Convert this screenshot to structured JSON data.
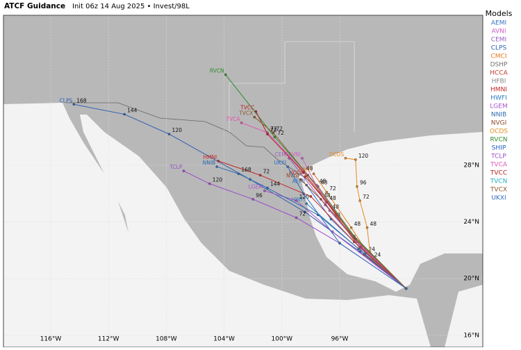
{
  "header": {
    "title": "ATCF Guidance",
    "subtitle": "Init 06z 14 Aug 2025 • Invest/98L"
  },
  "legend_title": "Models",
  "lon_ticks": [
    {
      "value": -116,
      "label": "116°W"
    },
    {
      "value": -112,
      "label": "112°W"
    },
    {
      "value": -108,
      "label": "108°W"
    },
    {
      "value": -104,
      "label": "104°W"
    },
    {
      "value": -100,
      "label": "100°W"
    },
    {
      "value": -96,
      "label": "96°W"
    }
  ],
  "lat_ticks": [
    {
      "value": 28,
      "label": "28°N"
    },
    {
      "value": 24,
      "label": "24°N"
    },
    {
      "value": 20,
      "label": "20°N"
    },
    {
      "value": 16,
      "label": "16°N"
    }
  ],
  "models": [
    {
      "name": "AEMI",
      "color": "#3a6fc4",
      "track": [
        [
          -91.4,
          19.3
        ],
        [
          -94.2,
          21.8,
          "24"
        ],
        [
          -96.6,
          24.2,
          "48"
        ],
        [
          -98.3,
          26.6
        ]
      ]
    },
    {
      "name": "AVNI",
      "color": "#d060c8",
      "track": [
        [
          -91.4,
          19.3
        ],
        [
          -94.3,
          22
        ],
        [
          -96.7,
          24.8,
          "48"
        ],
        [
          -98.6,
          28.5
        ]
      ]
    },
    {
      "name": "CEMI",
      "color": "#9b5fc0",
      "track": [
        [
          -91.4,
          19.3
        ],
        [
          -94.5,
          22.2
        ],
        [
          -97,
          25.2
        ],
        [
          -99.5,
          28.5
        ]
      ]
    },
    {
      "name": "CLPS",
      "color": "#2f5fb3",
      "track": [
        [
          -91.4,
          19.3
        ],
        [
          -94.6,
          21.9
        ],
        [
          -98.4,
          24.7
        ],
        [
          -102.2,
          27
        ],
        [
          -107.8,
          30.2,
          "120"
        ],
        [
          -110.9,
          31.6,
          "144"
        ],
        [
          -114.4,
          32.3,
          "168"
        ]
      ]
    },
    {
      "name": "CMCI",
      "color": "#e07b1a",
      "track": [
        [
          -91.4,
          19.3
        ],
        [
          -93.8,
          21.4,
          "24"
        ],
        [
          -95.2,
          23.6,
          "48"
        ],
        [
          -96.9,
          26.1,
          "72"
        ],
        [
          -97.8,
          27.4
        ]
      ]
    },
    {
      "name": "DSHP",
      "color": "#707070"
    },
    {
      "name": "HCCA",
      "color": "#c0392b",
      "track": [
        [
          -91.4,
          19.3
        ],
        [
          -94.3,
          21.7
        ],
        [
          -96.9,
          25.4,
          "48"
        ],
        [
          -98.4,
          27.2
        ]
      ]
    },
    {
      "name": "HFBI",
      "color": "#888888"
    },
    {
      "name": "HMNI",
      "color": "#c62828",
      "track": [
        [
          -91.4,
          19.3
        ],
        [
          -95,
          22.6
        ],
        [
          -98,
          25.8
        ],
        [
          -101.5,
          27.3,
          "72"
        ],
        [
          -104.4,
          28.3
        ]
      ]
    },
    {
      "name": "HWFI",
      "color": "#2a7fc0",
      "track": [
        [
          -91.4,
          19.3
        ],
        [
          -94.7,
          22.1
        ],
        [
          -98.3,
          25.3
        ]
      ]
    },
    {
      "name": "LGEM",
      "color": "#a855c9",
      "track": [
        [
          -91.4,
          19.3
        ],
        [
          -96.5,
          23.3
        ],
        [
          -99,
          25.5,
          "120"
        ],
        [
          -101.2,
          26.2
        ]
      ]
    },
    {
      "name": "NNIB",
      "color": "#2d6bb0",
      "track": [
        [
          -91.4,
          19.3
        ],
        [
          -97.5,
          24.5
        ],
        [
          -101,
          26.4,
          "144"
        ],
        [
          -103,
          27.4,
          "168"
        ],
        [
          -104.5,
          27.9
        ]
      ]
    },
    {
      "name": "NVGI",
      "color": "#8b4a2b",
      "track": [
        [
          -91.4,
          19.3
        ],
        [
          -94.5,
          22.3
        ],
        [
          -97.3,
          25.6,
          "48"
        ],
        [
          -98.7,
          27
        ]
      ]
    },
    {
      "name": "OCDS",
      "color": "#e58a1f",
      "track": [
        [
          -91.4,
          19.3
        ],
        [
          -93.9,
          21.8
        ],
        [
          -94.1,
          23.6,
          "48"
        ],
        [
          -94.6,
          25.5,
          "72"
        ],
        [
          -94.8,
          26.5,
          "96"
        ],
        [
          -94.9,
          28.4,
          "120"
        ],
        [
          -95.6,
          28.5
        ]
      ]
    },
    {
      "name": "RVCN",
      "color": "#2e8b2e",
      "track": [
        [
          -91.4,
          19.3
        ],
        [
          -95,
          23
        ],
        [
          -97.5,
          26.5,
          "48"
        ],
        [
          -100.5,
          30,
          "72"
        ],
        [
          -103.9,
          34.4
        ]
      ]
    },
    {
      "name": "SHIP",
      "color": "#2060c0"
    },
    {
      "name": "TCLP",
      "color": "#9b4dca",
      "track": [
        [
          -91.4,
          19.3
        ],
        [
          -96,
          22.5
        ],
        [
          -99,
          24.3,
          "72"
        ],
        [
          -102,
          25.6,
          "96"
        ],
        [
          -105,
          26.7,
          "120"
        ],
        [
          -106.8,
          27.6
        ]
      ]
    },
    {
      "name": "TVCA",
      "color": "#e055b4",
      "track": [
        [
          -91.4,
          19.3
        ],
        [
          -94.8,
          22.6
        ],
        [
          -97.6,
          26.6,
          "48"
        ],
        [
          -101,
          30.3,
          "72"
        ],
        [
          -102.8,
          31
        ]
      ]
    },
    {
      "name": "TVCC",
      "color": "#b22222",
      "track": [
        [
          -91.4,
          19.3
        ],
        [
          -94.9,
          22.8
        ],
        [
          -98.5,
          27.5,
          "48"
        ],
        [
          -101,
          30.2,
          "72"
        ],
        [
          -101.8,
          31.8
        ]
      ]
    },
    {
      "name": "TVCN",
      "color": "#20b0c0"
    },
    {
      "name": "TVCX",
      "color": "#8b5a2b",
      "track": [
        [
          -91.4,
          19.3
        ],
        [
          -95,
          22.9
        ],
        [
          -98.2,
          27.3
        ],
        [
          -100.6,
          30.3,
          "72"
        ],
        [
          -101.9,
          31.4
        ]
      ]
    },
    {
      "name": "UKXI",
      "color": "#2f6fc0",
      "track": [
        [
          -91.4,
          19.3
        ],
        [
          -96,
          22.5
        ],
        [
          -98.5,
          26
        ],
        [
          -99.6,
          27.9
        ]
      ]
    }
  ]
}
